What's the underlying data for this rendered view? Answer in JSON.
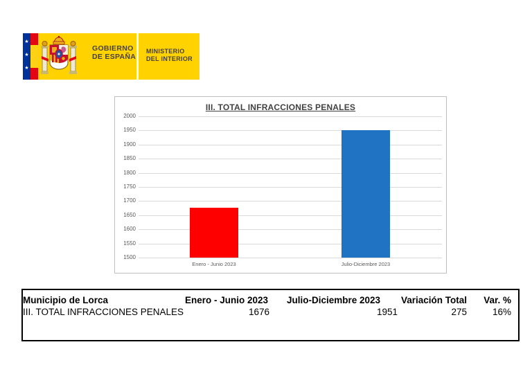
{
  "logo": {
    "government_line1": "GOBIERNO",
    "government_line2": "DE ESPAÑA",
    "ministry_line1": "MINISTERIO",
    "ministry_line2": "DEL INTERIOR",
    "colors": {
      "background_yellow": "#FFD200",
      "eu_blue": "#003399",
      "flag_red": "#E30613",
      "text_brown": "#46413A"
    }
  },
  "chart_data": {
    "type": "bar",
    "title": "III. TOTAL INFRACCIONES PENALES",
    "categories": [
      "Enero - Junio 2023",
      "Julio-Diciembre 2023"
    ],
    "values": [
      1676,
      1951
    ],
    "bar_colors": [
      "#FF0000",
      "#1F73C2"
    ],
    "xlabel": "",
    "ylabel": "",
    "ylim": [
      1500,
      2000
    ],
    "ytick_step": 50,
    "grid": true,
    "legend": "none",
    "gridline_color": "#D9D9D9",
    "axis_text_color": "#595959"
  },
  "table": {
    "headers": [
      "Municipio de Lorca",
      "Enero - Junio 2023",
      "Julio-Diciembre 2023",
      "Variación Total",
      "Var. %"
    ],
    "rows": [
      [
        "III. TOTAL INFRACCIONES PENALES",
        "1676",
        "1951",
        "275",
        "16%"
      ]
    ]
  }
}
